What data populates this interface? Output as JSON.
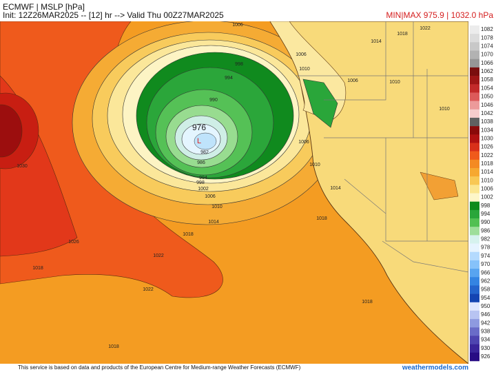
{
  "header": {
    "title": "ECMWF | MSLP [hPa]",
    "subtitle": "Init: 12Z26MAR2025 -- [12] hr --> Valid Thu 00Z27MAR2025",
    "minmax": "MIN|MAX 975.9 | 1032.0 hPa"
  },
  "colorbar": {
    "levels": [
      1082,
      1078,
      1074,
      1070,
      1066,
      1062,
      1058,
      1054,
      1050,
      1046,
      1042,
      1038,
      1034,
      1030,
      1026,
      1022,
      1018,
      1014,
      1010,
      1006,
      1002,
      998,
      994,
      990,
      986,
      982,
      978,
      974,
      970,
      966,
      962,
      958,
      954,
      950,
      946,
      942,
      938,
      934,
      930,
      926
    ],
    "colors": [
      "#ececec",
      "#dcdcdc",
      "#c8c8c8",
      "#b2b2b2",
      "#969696",
      "#7a0e0e",
      "#9e1616",
      "#c22a2a",
      "#dc5a5a",
      "#ec9a9a",
      "#f6cccc",
      "#606060",
      "#8a0a0a",
      "#b01212",
      "#d8301a",
      "#ef5a1c",
      "#f48a22",
      "#f6a830",
      "#f8c854",
      "#fbe690",
      "#fdf6c8",
      "#0e8a1c",
      "#2aa63a",
      "#52c052",
      "#9ede9a",
      "#d6f2ee",
      "#e6f4ff",
      "#b4dafe",
      "#86c2fa",
      "#58a4f0",
      "#3484e2",
      "#2464cc",
      "#1444b2",
      "#dfe6ff",
      "#b8c4f2",
      "#8e9ae0",
      "#6a6cc8",
      "#4e44b0",
      "#3a249a",
      "#280c84"
    ]
  },
  "contour_labels": [
    976,
    "L",
    990,
    994,
    998,
    982,
    986,
    994,
    998,
    1002,
    1006,
    1010,
    1014,
    1018,
    1022,
    1022,
    1026,
    1030,
    1018,
    1018,
    1018,
    1018,
    1014,
    1010,
    1006,
    1006,
    1006,
    1010,
    1018,
    1022,
    1014,
    1006,
    1010,
    1010
  ],
  "footer": {
    "notice": "This service is based on data and products of the European Centre for Medium-range Weather Forecasts (ECMWF)",
    "brand": "weathermodels.com"
  }
}
